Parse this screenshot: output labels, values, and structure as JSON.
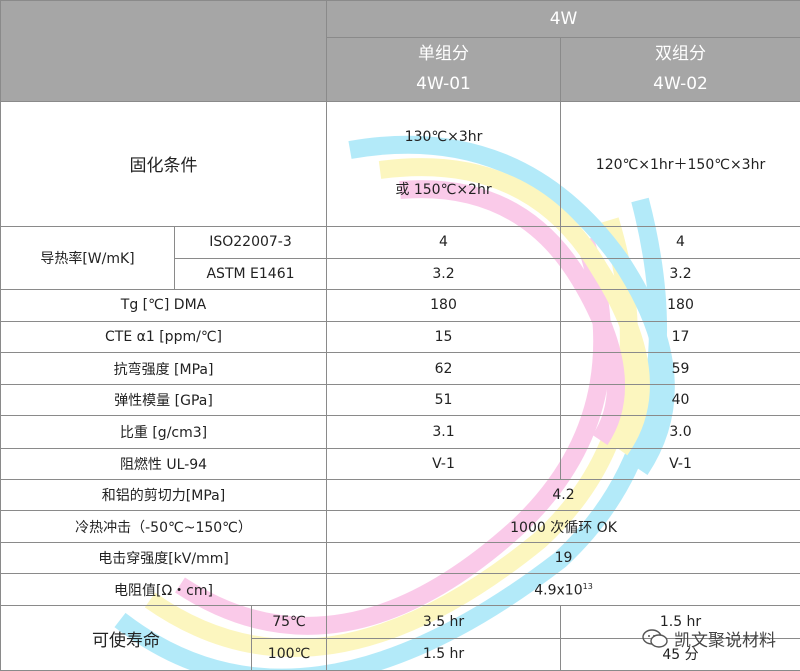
{
  "header": {
    "model": "4W",
    "col1_name": "单组分",
    "col1_code": "4W-01",
    "col2_name": "双组分",
    "col2_code": "4W-02"
  },
  "cure": {
    "label": "固化条件",
    "col1_line1": "130℃×3hr",
    "col1_line2": "或  150℃×2hr",
    "col2": "120℃×1hr＋150℃×3hr"
  },
  "thermal": {
    "label": "导热率[W/mK]",
    "rows": [
      {
        "method": "ISO22007-3",
        "v1": "4",
        "v2": "4"
      },
      {
        "method": "ASTM E1461",
        "v1": "3.2",
        "v2": "3.2"
      }
    ]
  },
  "props": [
    {
      "label": "Tg [℃] DMA",
      "v1": "180",
      "v2": "180"
    },
    {
      "label": "CTE α1 [ppm/℃]",
      "v1": "15",
      "v2": "17"
    },
    {
      "label": "抗弯强度  [MPa]",
      "v1": "62",
      "v2": "59"
    },
    {
      "label": "弹性模量  [GPa]",
      "v1": "51",
      "v2": "40"
    },
    {
      "label": "比重  [g/cm3]",
      "v1": "3.1",
      "v2": "3.0"
    },
    {
      "label": "阻燃性 UL-94",
      "v1": "V-1",
      "v2": "V-1"
    }
  ],
  "merged": [
    {
      "label": "和铝的剪切力[MPa]",
      "value": "4.2"
    },
    {
      "label": "冷热冲击（-50℃~150℃）",
      "value": "1000 次循环 OK"
    },
    {
      "label": "电击穿强度[kV/mm]",
      "value": "19"
    }
  ],
  "resistivity": {
    "label": "电阻值[Ω・cm]",
    "mantissa": "4.9x10",
    "exponent": "13"
  },
  "life": {
    "label": "可使寿命",
    "rows": [
      {
        "temp": "75℃",
        "v1": "3.5 hr",
        "v2": "1.5 hr"
      },
      {
        "temp": "100℃",
        "v1": "1.5 hr",
        "v2": "45 分"
      }
    ]
  },
  "watermark": {
    "text": "凯文聚说材料",
    "icon": "wechat-icon"
  }
}
